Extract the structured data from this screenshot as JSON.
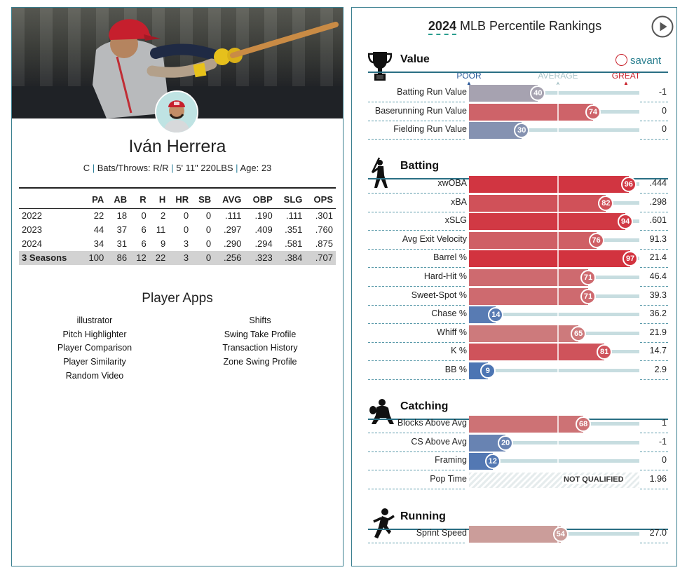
{
  "player": {
    "name": "Iván Herrera",
    "position": "C",
    "bats_throws": "Bats/Throws: R/R",
    "height_weight": "5' 11\" 220LBS",
    "age": "Age: 23",
    "sep": "|"
  },
  "stats_table": {
    "headers": [
      "",
      "PA",
      "AB",
      "R",
      "H",
      "HR",
      "SB",
      "AVG",
      "OBP",
      "SLG",
      "OPS"
    ],
    "rows": [
      [
        "2022",
        "22",
        "18",
        "0",
        "2",
        "0",
        "0",
        ".111",
        ".190",
        ".111",
        ".301"
      ],
      [
        "2023",
        "44",
        "37",
        "6",
        "11",
        "0",
        "0",
        ".297",
        ".409",
        ".351",
        ".760"
      ],
      [
        "2024",
        "34",
        "31",
        "6",
        "9",
        "3",
        "0",
        ".290",
        ".294",
        ".581",
        ".875"
      ],
      [
        "3 Seasons",
        "100",
        "86",
        "12",
        "22",
        "3",
        "0",
        ".256",
        ".323",
        ".384",
        ".707"
      ]
    ]
  },
  "apps": {
    "title": "Player Apps",
    "left": [
      "illustrator",
      "Pitch Highlighter",
      "Player Comparison",
      "Player Similarity",
      "Random Video"
    ],
    "right": [
      "Shifts",
      "Swing Take Profile",
      "Transaction History",
      "Zone Swing Profile"
    ]
  },
  "rankings": {
    "title_year": "2024",
    "title_rest": " MLB Percentile Rankings",
    "brand": "savant",
    "scale": {
      "poor": "POOR",
      "average": "AVERAGE",
      "great": "GREAT"
    },
    "not_qualified": "NOT QUALIFIED",
    "colors": {
      "great": "#d22d3a",
      "average": "#c9b4ae",
      "poor": "#3d6db4",
      "scale_poor": "#2a5a9a",
      "scale_average": "#a9c4c8",
      "scale_great": "#c8202a"
    },
    "sections": [
      {
        "id": "value",
        "title": "Value",
        "icon": "trophy-icon",
        "metrics": [
          {
            "label": "Batting Run Value",
            "percentile": 40,
            "value": "-1"
          },
          {
            "label": "Baserunning Run Value",
            "percentile": 74,
            "value": "0"
          },
          {
            "label": "Fielding Run Value",
            "percentile": 30,
            "value": "0"
          }
        ]
      },
      {
        "id": "batting",
        "title": "Batting",
        "icon": "batter-icon",
        "metrics": [
          {
            "label": "xwOBA",
            "percentile": 96,
            "value": ".444"
          },
          {
            "label": "xBA",
            "percentile": 82,
            "value": ".298"
          },
          {
            "label": "xSLG",
            "percentile": 94,
            "value": ".601"
          },
          {
            "label": "Avg Exit Velocity",
            "percentile": 76,
            "value": "91.3"
          },
          {
            "label": "Barrel %",
            "percentile": 97,
            "value": "21.4"
          },
          {
            "label": "Hard-Hit %",
            "percentile": 71,
            "value": "46.4"
          },
          {
            "label": "Sweet-Spot %",
            "percentile": 71,
            "value": "39.3"
          },
          {
            "label": "Chase %",
            "percentile": 14,
            "value": "36.2"
          },
          {
            "label": "Whiff %",
            "percentile": 65,
            "value": "21.9"
          },
          {
            "label": "K %",
            "percentile": 81,
            "value": "14.7"
          },
          {
            "label": "BB %",
            "percentile": 9,
            "value": "2.9"
          }
        ]
      },
      {
        "id": "catching",
        "title": "Catching",
        "icon": "catcher-icon",
        "metrics": [
          {
            "label": "Blocks Above Avg",
            "percentile": 68,
            "value": "1"
          },
          {
            "label": "CS Above Avg",
            "percentile": 20,
            "value": "-1"
          },
          {
            "label": "Framing",
            "percentile": 12,
            "value": "0"
          },
          {
            "label": "Pop Time",
            "percentile": null,
            "value": "1.96"
          }
        ]
      },
      {
        "id": "running",
        "title": "Running",
        "icon": "runner-icon",
        "metrics": [
          {
            "label": "Sprint Speed",
            "percentile": 54,
            "value": "27.0"
          }
        ]
      }
    ]
  }
}
